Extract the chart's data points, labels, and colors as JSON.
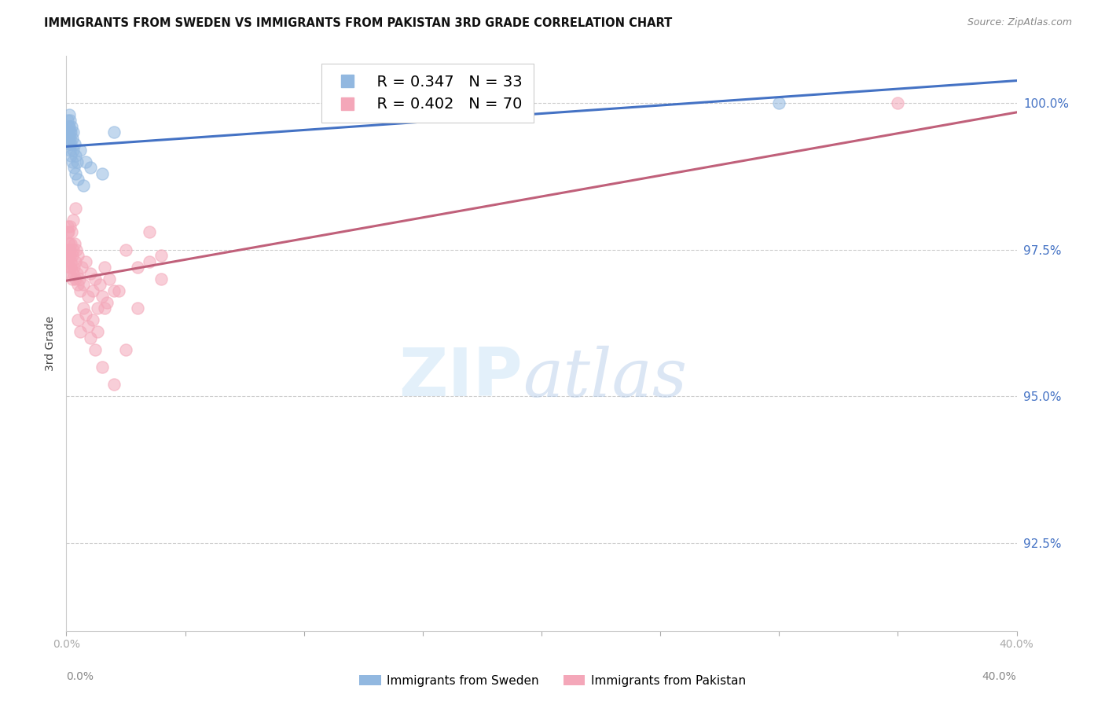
{
  "title": "IMMIGRANTS FROM SWEDEN VS IMMIGRANTS FROM PAKISTAN 3RD GRADE CORRELATION CHART",
  "source": "Source: ZipAtlas.com",
  "ylabel": "3rd Grade",
  "x_min": 0.0,
  "x_max": 40.0,
  "y_min": 91.0,
  "y_max": 100.8,
  "yticks": [
    92.5,
    95.0,
    97.5,
    100.0
  ],
  "ytick_labels": [
    "92.5%",
    "95.0%",
    "97.5%",
    "100.0%"
  ],
  "sweden_color": "#92b8e0",
  "pakistan_color": "#f4a7b9",
  "sweden_line_color": "#4472c4",
  "pakistan_line_color": "#c0607a",
  "R_sweden": 0.347,
  "N_sweden": 33,
  "R_pakistan": 0.402,
  "N_pakistan": 70,
  "sweden_x": [
    0.05,
    0.07,
    0.09,
    0.1,
    0.11,
    0.12,
    0.13,
    0.14,
    0.15,
    0.16,
    0.17,
    0.18,
    0.19,
    0.2,
    0.22,
    0.24,
    0.25,
    0.27,
    0.3,
    0.32,
    0.35,
    0.38,
    0.4,
    0.45,
    0.5,
    0.6,
    0.7,
    0.8,
    1.0,
    1.5,
    2.0,
    14.0,
    30.0
  ],
  "sweden_y": [
    99.7,
    99.5,
    99.6,
    99.4,
    99.8,
    99.3,
    99.6,
    99.5,
    99.7,
    99.4,
    99.2,
    99.5,
    99.3,
    99.1,
    99.6,
    99.0,
    99.4,
    99.2,
    99.5,
    98.9,
    99.3,
    99.1,
    98.8,
    99.0,
    98.7,
    99.2,
    98.6,
    99.0,
    98.9,
    98.8,
    99.5,
    100.0,
    100.0
  ],
  "pakistan_x": [
    0.04,
    0.05,
    0.06,
    0.07,
    0.08,
    0.09,
    0.1,
    0.11,
    0.12,
    0.13,
    0.14,
    0.15,
    0.16,
    0.17,
    0.18,
    0.19,
    0.2,
    0.22,
    0.24,
    0.25,
    0.27,
    0.3,
    0.32,
    0.35,
    0.38,
    0.4,
    0.42,
    0.45,
    0.48,
    0.5,
    0.55,
    0.6,
    0.65,
    0.7,
    0.8,
    0.9,
    1.0,
    1.1,
    1.2,
    1.3,
    1.4,
    1.5,
    1.6,
    1.7,
    1.8,
    2.0,
    2.5,
    3.0,
    3.5,
    4.0,
    0.5,
    0.7,
    0.9,
    1.0,
    1.2,
    1.5,
    2.0,
    2.5,
    3.0,
    4.0,
    0.6,
    0.8,
    1.1,
    1.3,
    1.6,
    2.2,
    3.5,
    35.0,
    0.3,
    0.4
  ],
  "pakistan_y": [
    97.8,
    97.5,
    97.9,
    97.3,
    97.6,
    97.4,
    97.8,
    97.5,
    97.2,
    97.6,
    97.4,
    97.9,
    97.1,
    97.5,
    97.3,
    97.6,
    97.2,
    97.8,
    97.0,
    97.4,
    97.1,
    97.5,
    97.2,
    97.6,
    97.0,
    97.3,
    97.5,
    97.1,
    96.9,
    97.4,
    97.0,
    96.8,
    97.2,
    96.9,
    97.3,
    96.7,
    97.1,
    96.8,
    97.0,
    96.5,
    96.9,
    96.7,
    97.2,
    96.6,
    97.0,
    96.8,
    97.5,
    97.2,
    97.8,
    97.4,
    96.3,
    96.5,
    96.2,
    96.0,
    95.8,
    95.5,
    95.2,
    95.8,
    96.5,
    97.0,
    96.1,
    96.4,
    96.3,
    96.1,
    96.5,
    96.8,
    97.3,
    100.0,
    98.0,
    98.2
  ]
}
